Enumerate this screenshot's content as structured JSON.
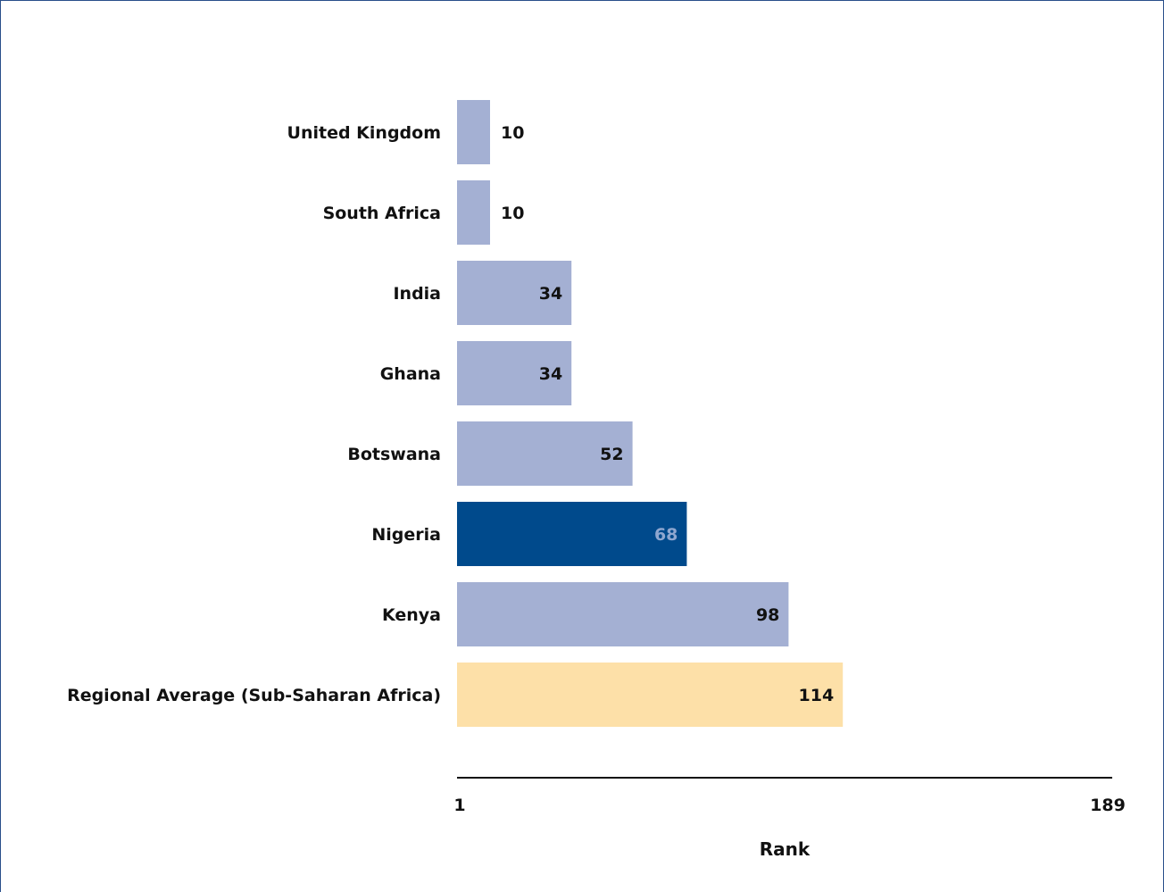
{
  "chart_data": {
    "type": "bar",
    "orientation": "horizontal",
    "categories": [
      "United Kingdom",
      "South Africa",
      "India",
      "Ghana",
      "Botswana",
      "Nigeria",
      "Kenya",
      "Regional Average (Sub-Saharan Africa)"
    ],
    "values": [
      10,
      10,
      34,
      34,
      52,
      68,
      98,
      114
    ],
    "value_labels": [
      "10",
      "10",
      "34",
      "34",
      "52",
      "68",
      "98",
      "114"
    ],
    "bar_colors": [
      "#a4b0d3",
      "#a4b0d3",
      "#a4b0d3",
      "#a4b0d3",
      "#a4b0d3",
      "#004a8c",
      "#a4b0d3",
      "#fde0a8"
    ],
    "value_label_colors": [
      "#111111",
      "#111111",
      "#111111",
      "#111111",
      "#111111",
      "#8fa7d0",
      "#111111",
      "#111111"
    ],
    "title": "",
    "xlabel": "Rank",
    "ylabel": "",
    "xlim": [
      1,
      189
    ],
    "x_tick_labels": [
      "1",
      "189"
    ],
    "grid": false,
    "legend": "none"
  }
}
